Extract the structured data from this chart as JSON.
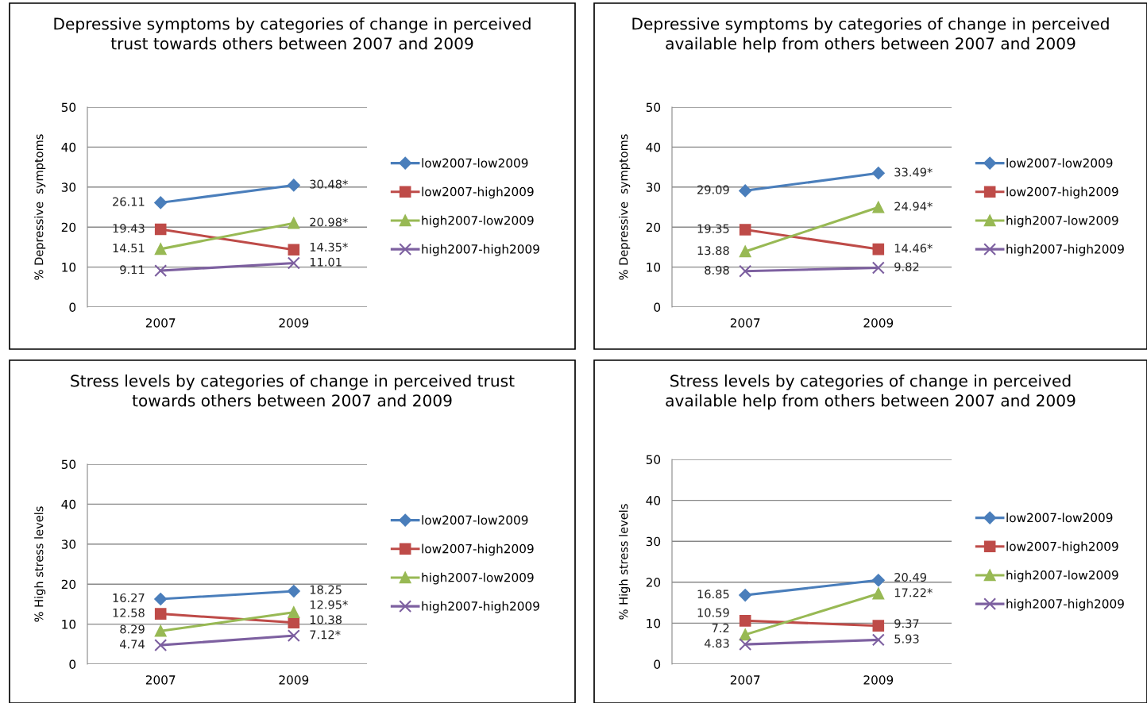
{
  "chart_data": [
    {
      "type": "line",
      "title": "Depressive symptoms by categories of change in perceived trust towards others between 2007 and 2009",
      "ylabel": "% Depressive  symptoms",
      "categories": [
        "2007",
        "2009"
      ],
      "ylim": [
        0,
        50
      ],
      "yticks": [
        0,
        10,
        20,
        30,
        40,
        50
      ],
      "grid": "y",
      "legend": "right",
      "series": [
        {
          "name": "low2007-low2009",
          "color": "#4a7ebb",
          "marker": "diamond",
          "values": [
            26.11,
            30.48
          ],
          "value_labels": [
            "26.11",
            "30.48*"
          ]
        },
        {
          "name": "low2007-high2009",
          "color": "#be4b48",
          "marker": "square",
          "values": [
            19.43,
            14.35
          ],
          "value_labels": [
            "19.43",
            "14.35*"
          ]
        },
        {
          "name": "high2007-low2009",
          "color": "#98b954",
          "marker": "triangle",
          "values": [
            14.51,
            20.98
          ],
          "value_labels": [
            "14.51",
            "20.98*"
          ]
        },
        {
          "name": "high2007-high2009",
          "color": "#7d60a0",
          "marker": "cross",
          "values": [
            9.11,
            11.01
          ],
          "value_labels": [
            "9.11",
            "11.01"
          ]
        }
      ]
    },
    {
      "type": "line",
      "title": "Depressive symptoms by categories of change in perceived available help from others between 2007 and 2009",
      "ylabel": "% Depressive  symptoms",
      "categories": [
        "2007",
        "2009"
      ],
      "ylim": [
        0,
        50
      ],
      "yticks": [
        0,
        10,
        20,
        30,
        40,
        50
      ],
      "grid": "y",
      "legend": "right",
      "series": [
        {
          "name": "low2007-low2009",
          "color": "#4a7ebb",
          "marker": "diamond",
          "values": [
            29.09,
            33.49
          ],
          "value_labels": [
            "29.09",
            "33.49*"
          ]
        },
        {
          "name": "low2007-high2009",
          "color": "#be4b48",
          "marker": "square",
          "values": [
            19.35,
            14.46
          ],
          "value_labels": [
            "19.35",
            "14.46*"
          ]
        },
        {
          "name": "high2007-low2009",
          "color": "#98b954",
          "marker": "triangle",
          "values": [
            13.88,
            24.94
          ],
          "value_labels": [
            "13.88",
            "24.94*"
          ]
        },
        {
          "name": "high2007-high2009",
          "color": "#7d60a0",
          "marker": "cross",
          "values": [
            8.98,
            9.82
          ],
          "value_labels": [
            "8.98",
            "9.82"
          ]
        }
      ]
    },
    {
      "type": "line",
      "title": "Stress levels by categories of change in perceived trust towards others between 2007 and 2009",
      "ylabel": "% High stress levels",
      "categories": [
        "2007",
        "2009"
      ],
      "ylim": [
        0,
        50
      ],
      "yticks": [
        0,
        10,
        20,
        30,
        40,
        50
      ],
      "grid": "y",
      "legend": "right",
      "series": [
        {
          "name": "low2007-low2009",
          "color": "#4a7ebb",
          "marker": "diamond",
          "values": [
            16.27,
            18.25
          ],
          "value_labels": [
            "16.27",
            "18.25"
          ]
        },
        {
          "name": "low2007-high2009",
          "color": "#be4b48",
          "marker": "square",
          "values": [
            12.58,
            10.38
          ],
          "value_labels": [
            "12.58",
            "10.38"
          ]
        },
        {
          "name": "high2007-low2009",
          "color": "#98b954",
          "marker": "triangle",
          "values": [
            8.29,
            12.95
          ],
          "value_labels": [
            "8.29",
            "12.95*"
          ]
        },
        {
          "name": "high2007-high2009",
          "color": "#7d60a0",
          "marker": "cross",
          "values": [
            4.74,
            7.12
          ],
          "value_labels": [
            "4.74",
            "7.12*"
          ]
        }
      ]
    },
    {
      "type": "line",
      "title": "Stress levels by categories of change in perceived available help from others between 2007 and 2009",
      "ylabel": "% High stress levels",
      "categories": [
        "2007",
        "2009"
      ],
      "ylim": [
        0,
        50
      ],
      "yticks": [
        0,
        10,
        20,
        30,
        40,
        50
      ],
      "grid": "y",
      "legend": "right",
      "series": [
        {
          "name": "low2007-low2009",
          "color": "#4a7ebb",
          "marker": "diamond",
          "values": [
            16.85,
            20.49
          ],
          "value_labels": [
            "16.85",
            "20.49"
          ]
        },
        {
          "name": "low2007-high2009",
          "color": "#be4b48",
          "marker": "square",
          "values": [
            10.59,
            9.37
          ],
          "value_labels": [
            "10.59",
            "9.37"
          ]
        },
        {
          "name": "high2007-low2009",
          "color": "#98b954",
          "marker": "triangle",
          "values": [
            7.2,
            17.22
          ],
          "value_labels": [
            "7.2",
            "17.22*"
          ]
        },
        {
          "name": "high2007-high2009",
          "color": "#7d60a0",
          "marker": "cross",
          "values": [
            4.83,
            5.93
          ],
          "value_labels": [
            "4.83",
            "5.93"
          ]
        }
      ]
    }
  ]
}
